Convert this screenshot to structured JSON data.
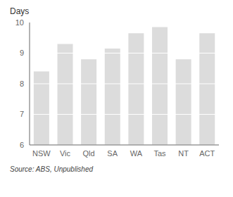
{
  "chart_data": {
    "type": "bar",
    "ylabel": "Days",
    "annotations": [
      "Source: ABS, Unpublished"
    ],
    "categories": [
      "NSW",
      "Vic",
      "Qld",
      "SA",
      "WA",
      "Tas",
      "NT",
      "ACT"
    ],
    "values": [
      8.4,
      9.3,
      8.8,
      9.15,
      9.65,
      9.85,
      8.8,
      9.65
    ],
    "color": "#dcdcdc",
    "ylim": [
      6,
      10
    ],
    "yticks": [
      6,
      7,
      8,
      9,
      10
    ],
    "grid": true
  }
}
